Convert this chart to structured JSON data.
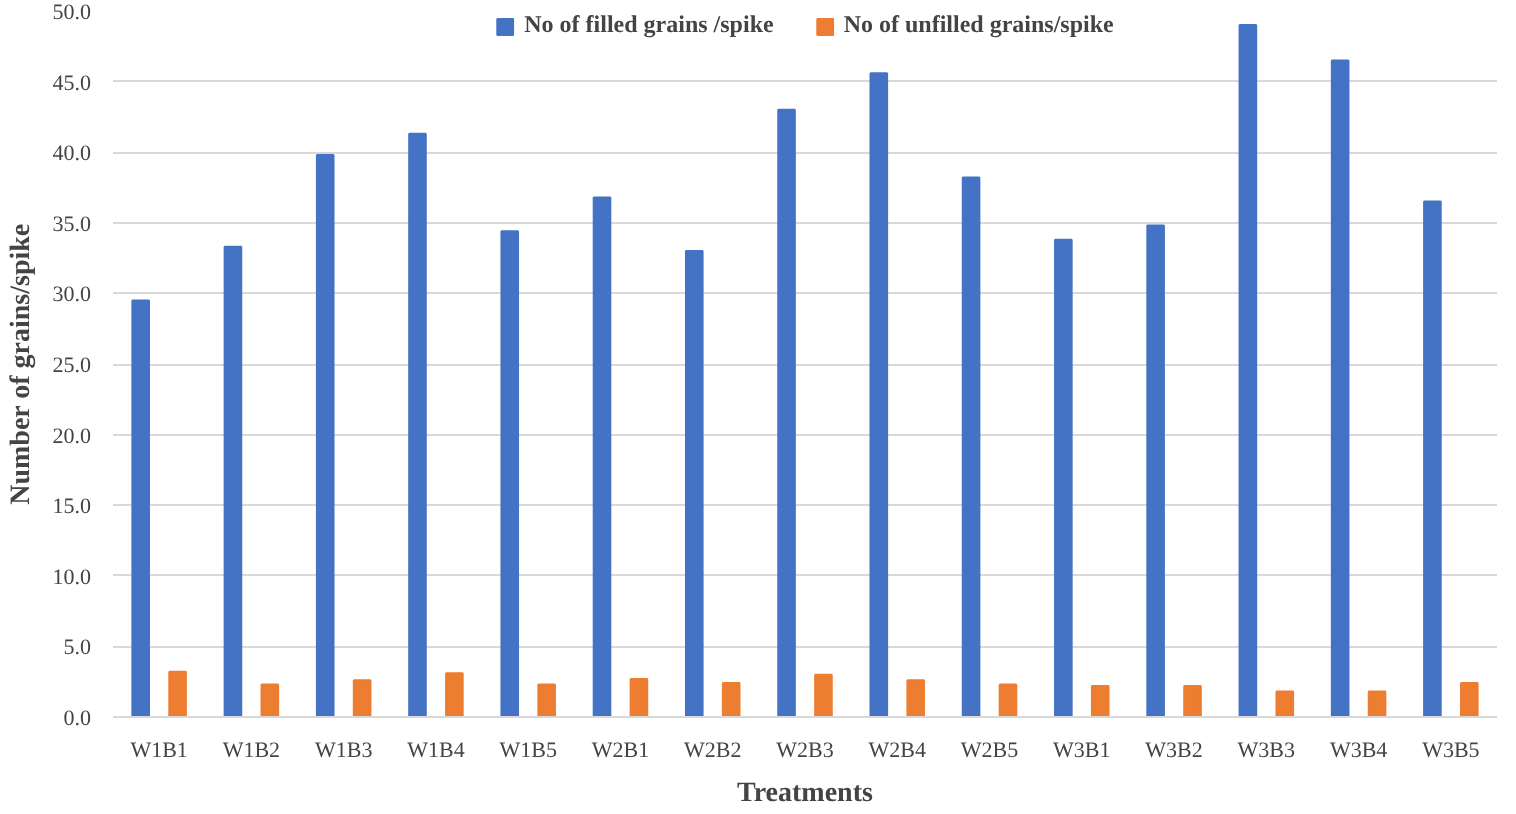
{
  "chart_data": {
    "type": "bar",
    "xlabel": "Treatments",
    "ylabel": "Number of grains/spike",
    "categories": [
      "W1B1",
      "W1B2",
      "W1B3",
      "W1B4",
      "W1B5",
      "W2B1",
      "W2B2",
      "W2B3",
      "W2B4",
      "W2B5",
      "W3B1",
      "W3B2",
      "W3B3",
      "W3B4",
      "W3B5"
    ],
    "series": [
      {
        "name": "No of filled grains /spike",
        "color": "#4472c4",
        "values": [
          29.5,
          33.3,
          39.8,
          41.3,
          34.4,
          36.8,
          33.0,
          43.0,
          45.6,
          38.2,
          33.8,
          34.8,
          49.0,
          46.5,
          36.5
        ]
      },
      {
        "name": "No of unfilled grains/spike",
        "color": "#ed7d31",
        "values": [
          3.2,
          2.3,
          2.6,
          3.1,
          2.3,
          2.7,
          2.4,
          3.0,
          2.6,
          2.3,
          2.2,
          2.2,
          1.8,
          1.8,
          2.4
        ]
      }
    ],
    "ylim": [
      0,
      50
    ],
    "yticks": [
      {
        "value": 0,
        "label": "0.0"
      },
      {
        "value": 5,
        "label": "5.0"
      },
      {
        "value": 10,
        "label": "10.0"
      },
      {
        "value": 15,
        "label": "15.0"
      },
      {
        "value": 20,
        "label": "20.0"
      },
      {
        "value": 25,
        "label": "25.0"
      },
      {
        "value": 30,
        "label": "30.0"
      },
      {
        "value": 35,
        "label": "35.0"
      },
      {
        "value": 40,
        "label": "40.0"
      },
      {
        "value": 45,
        "label": "45.0"
      },
      {
        "value": 50,
        "label": "50.0"
      }
    ],
    "grid": "y",
    "legend": "top"
  }
}
